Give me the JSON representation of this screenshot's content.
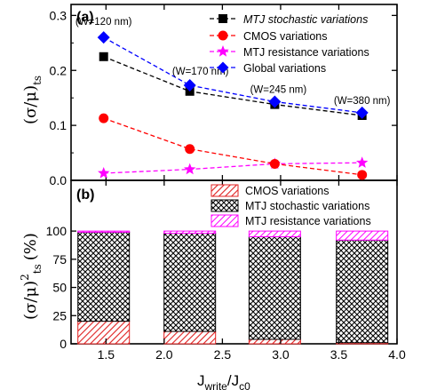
{
  "chart_data": [
    {
      "type": "line",
      "panel_label": "(a)",
      "ylabel_main": "(σ/μ)",
      "ylabel_sub": "ts",
      "ylim": [
        0,
        0.32
      ],
      "yticks": [
        0.0,
        0.1,
        0.2,
        0.3
      ],
      "ytick_labels": [
        "0.0",
        "0.1",
        "0.2",
        "0.3"
      ],
      "xlim": [
        1.2,
        4.0
      ],
      "x": [
        1.48,
        2.22,
        2.95,
        3.7
      ],
      "series": [
        {
          "name": "MTJ stochastic variations",
          "italic_prefix": "MTJ stochastic variations",
          "marker": "square",
          "color": "#000000",
          "values": [
            0.225,
            0.162,
            0.138,
            0.118
          ]
        },
        {
          "name": "CMOS variations",
          "marker": "circle",
          "color": "#ff0000",
          "values": [
            0.113,
            0.057,
            0.03,
            0.01
          ]
        },
        {
          "name": "MTJ resistance variations",
          "marker": "star",
          "color": "#ff00ff",
          "values": [
            0.013,
            0.02,
            0.03,
            0.032
          ]
        },
        {
          "name": "Global variations",
          "marker": "diamond",
          "color": "#0000ff",
          "values": [
            0.26,
            0.173,
            0.143,
            0.123
          ]
        }
      ],
      "annotations": [
        {
          "text": "(W=120 nm)",
          "x": 1.48
        },
        {
          "text": "(W=170 nm)",
          "x": 2.22
        },
        {
          "text": "(W=245 nm)",
          "x": 2.95
        },
        {
          "text": "(W=380 nm)",
          "x": 3.7
        }
      ],
      "legend": "top-right"
    },
    {
      "type": "bar",
      "stacked": true,
      "panel_label": "(b)",
      "ylabel_main": "(σ/μ)",
      "ylabel_sup": "2",
      "ylabel_sub": "ts",
      "ylabel_unit": "(%)",
      "ylim": [
        0,
        145
      ],
      "yticks": [
        0,
        25,
        50,
        75,
        100
      ],
      "ytick_labels": [
        "0",
        "25",
        "50",
        "75",
        "100"
      ],
      "xlim": [
        1.2,
        4.0
      ],
      "xticks": [
        1.5,
        2.0,
        2.5,
        3.0,
        3.5,
        4.0
      ],
      "xtick_labels": [
        "1.5",
        "2.0",
        "2.5",
        "3.0",
        "3.5",
        "4.0"
      ],
      "x": [
        1.48,
        2.22,
        2.95,
        3.7
      ],
      "series": [
        {
          "name": "CMOS variations",
          "pattern": "red-diagonal",
          "values": [
            20,
            11,
            4,
            1
          ]
        },
        {
          "name": "MTJ stochastic variations",
          "pattern": "black-crosshatch",
          "values": [
            79,
            87,
            91,
            91
          ]
        },
        {
          "name": "MTJ resistance variations",
          "pattern": "magenta-diagonal",
          "values": [
            1,
            2,
            5,
            8
          ]
        }
      ],
      "legend": "top-right"
    }
  ],
  "xlabel_main": "J",
  "xlabel_sub1": "write",
  "xlabel_sep": "/J",
  "xlabel_sub2": "c0"
}
